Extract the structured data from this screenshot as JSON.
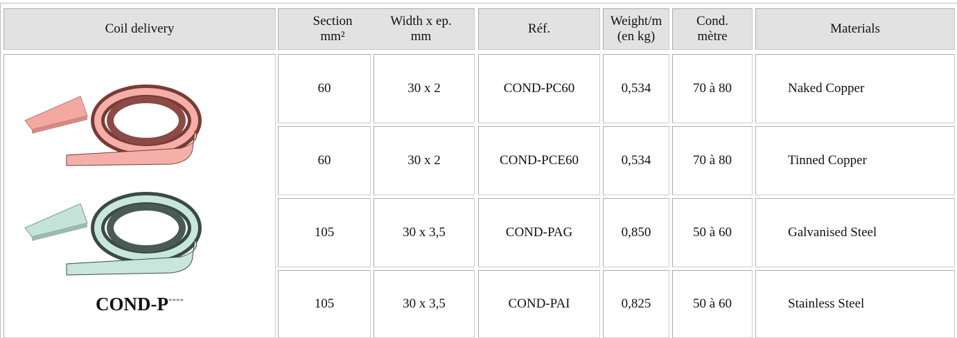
{
  "table": {
    "header": [
      "Coil delivery",
      "Section\nmm²",
      "Width x ep.\nmm",
      "Réf.",
      "Weight/m\n(en kg)",
      "Cond.\nmètre",
      "Materials"
    ],
    "product": {
      "name": "COND-P",
      "suffix": "****"
    },
    "rows": [
      [
        "60",
        "30 x 2",
        "COND-PC60",
        "0,534",
        "70 à 80",
        "Naked Copper"
      ],
      [
        "60",
        "30 x 2",
        "COND-PCE60",
        "0,534",
        "70 à 80",
        "Tinned Copper"
      ],
      [
        "105",
        "30 x 3,5",
        "COND-PAG",
        "0,850",
        "50 à 60",
        "Galvanised Steel"
      ],
      [
        "105",
        "30 x 3,5",
        "COND-PAI",
        "0,825",
        "50 à 60",
        "Stainless Steel"
      ]
    ]
  }
}
